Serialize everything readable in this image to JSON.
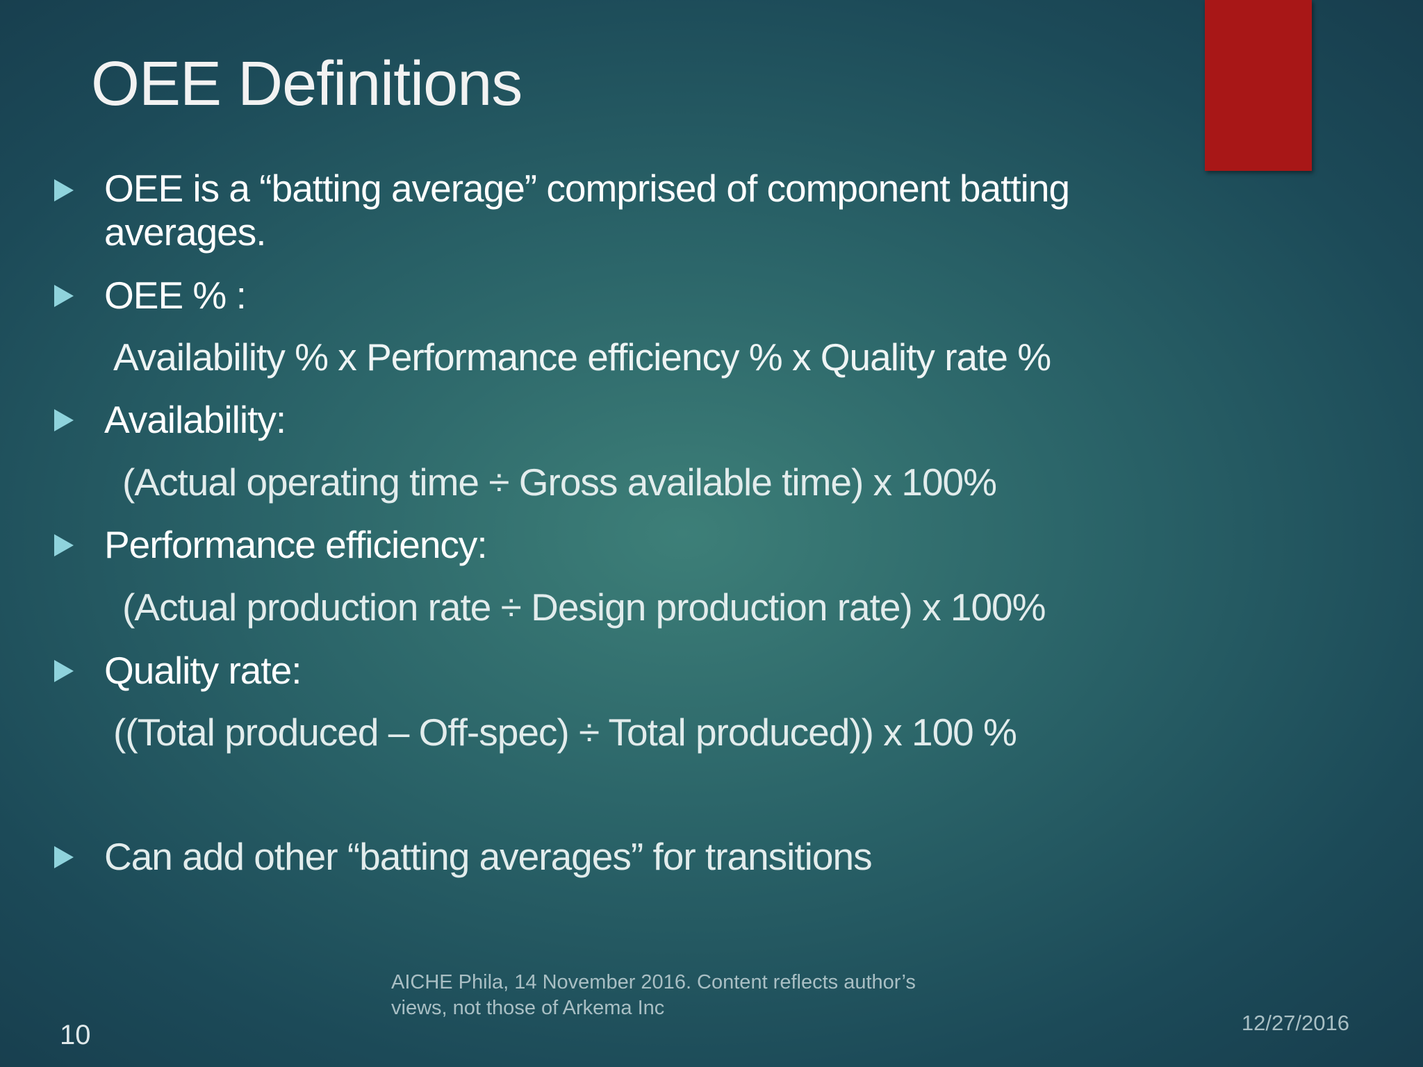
{
  "title": "OEE Definitions",
  "bullets": [
    {
      "text": "OEE is a “batting average” comprised of component batting averages."
    },
    {
      "text": "OEE % :",
      "detail": "Availability % x Performance efficiency % x Quality rate %"
    },
    {
      "text": "Availability:",
      "detail": "(Actual operating time ÷ Gross available time) x 100%"
    },
    {
      "text": "Performance efficiency:",
      "detail": "(Actual production rate ÷ Design production rate) x 100%"
    },
    {
      "text": "Quality rate:",
      "detail": "((Total produced – Off-spec) ÷ Total produced)) x 100 %"
    },
    {
      "text": "Can add other “batting averages” for transitions"
    }
  ],
  "footer": {
    "note": "AICHE Phila, 14 November 2016. Content reflects author’s views, not those of Arkema Inc",
    "date": "12/27/2016",
    "slide_number": "10"
  }
}
